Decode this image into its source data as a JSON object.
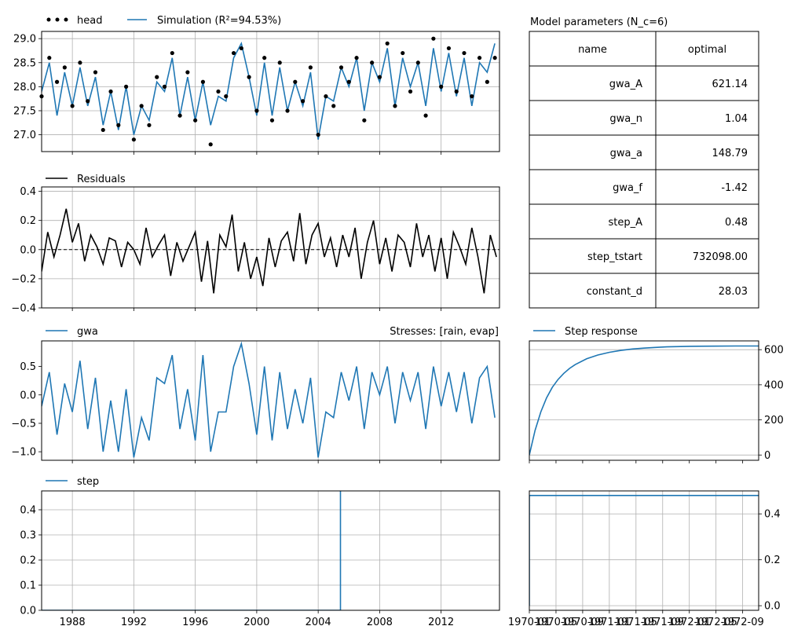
{
  "figure": {
    "colors": {
      "observed": "#000000",
      "simulated": "#1f77b4",
      "grid": "#b0b0b0",
      "frame": "#000000"
    },
    "x_ticks": [
      "1988",
      "1992",
      "1996",
      "2000",
      "2004",
      "2008",
      "2012"
    ],
    "table": {
      "title": "Model parameters (N_c=6)",
      "header": [
        "name",
        "optimal"
      ],
      "rows": [
        [
          "gwa_A",
          "621.14"
        ],
        [
          "gwa_n",
          "1.04"
        ],
        [
          "gwa_a",
          "148.79"
        ],
        [
          "gwa_f",
          "-1.42"
        ],
        [
          "step_A",
          "0.48"
        ],
        [
          "step_tstart",
          "732098.00"
        ],
        [
          "constant_d",
          "28.03"
        ]
      ]
    }
  },
  "chart_data": [
    {
      "type": "line",
      "panel": "fit",
      "xlim": [
        1986.0,
        2015.8
      ],
      "ylim": [
        26.65,
        29.15
      ],
      "yticks": [
        "27.0",
        "27.5",
        "28.0",
        "28.5",
        "29.0"
      ],
      "grid": true,
      "legend_position": "top-left",
      "series": [
        {
          "name": "head",
          "style": "dots",
          "color": "#000000",
          "x": [
            1986.0,
            1986.5,
            1987.0,
            1987.5,
            1988.0,
            1988.5,
            1989.0,
            1989.5,
            1990.0,
            1990.5,
            1991.0,
            1991.5,
            1992.0,
            1992.5,
            1993.0,
            1993.5,
            1994.0,
            1994.5,
            1995.0,
            1995.5,
            1996.0,
            1996.5,
            1997.0,
            1997.5,
            1998.0,
            1998.5,
            1999.0,
            1999.5,
            2000.0,
            2000.5,
            2001.0,
            2001.5,
            2002.0,
            2002.5,
            2003.0,
            2003.5,
            2004.0,
            2004.5,
            2005.0,
            2005.5,
            2006.0,
            2006.5,
            2007.0,
            2007.5,
            2008.0,
            2008.5,
            2009.0,
            2009.5,
            2010.0,
            2010.5,
            2011.0,
            2011.5,
            2012.0,
            2012.5,
            2013.0,
            2013.5,
            2014.0,
            2014.5,
            2015.0,
            2015.5
          ],
          "y": [
            27.8,
            28.6,
            28.1,
            28.4,
            27.6,
            28.5,
            27.7,
            28.3,
            27.1,
            27.9,
            27.2,
            28.0,
            26.9,
            27.6,
            27.2,
            28.2,
            28.0,
            28.7,
            27.4,
            28.3,
            27.3,
            28.1,
            26.8,
            27.9,
            27.8,
            28.7,
            28.8,
            28.2,
            27.5,
            28.6,
            27.3,
            28.5,
            27.5,
            28.1,
            27.7,
            28.4,
            27.0,
            27.8,
            27.6,
            28.4,
            28.1,
            28.6,
            27.3,
            28.5,
            28.2,
            28.9,
            27.6,
            28.7,
            27.9,
            28.5,
            27.4,
            29.0,
            28.0,
            28.8,
            27.9,
            28.7,
            27.8,
            28.6,
            28.1,
            28.6
          ]
        },
        {
          "name": "Simulation (R²=94.53%)",
          "style": "line",
          "color": "#1f77b4",
          "x": [
            1986.0,
            1986.5,
            1987.0,
            1987.5,
            1988.0,
            1988.5,
            1989.0,
            1989.5,
            1990.0,
            1990.5,
            1991.0,
            1991.5,
            1992.0,
            1992.5,
            1993.0,
            1993.5,
            1994.0,
            1994.5,
            1995.0,
            1995.5,
            1996.0,
            1996.5,
            1997.0,
            1997.5,
            1998.0,
            1998.5,
            1999.0,
            1999.5,
            2000.0,
            2000.5,
            2001.0,
            2001.5,
            2002.0,
            2002.5,
            2003.0,
            2003.5,
            2004.0,
            2004.5,
            2005.0,
            2005.5,
            2006.0,
            2006.5,
            2007.0,
            2007.5,
            2008.0,
            2008.5,
            2009.0,
            2009.5,
            2010.0,
            2010.5,
            2011.0,
            2011.5,
            2012.0,
            2012.5,
            2013.0,
            2013.5,
            2014.0,
            2014.5,
            2015.0,
            2015.5
          ],
          "y": [
            27.9,
            28.5,
            27.4,
            28.3,
            27.6,
            28.4,
            27.6,
            28.2,
            27.2,
            27.9,
            27.1,
            28.0,
            27.0,
            27.6,
            27.3,
            28.1,
            27.9,
            28.6,
            27.4,
            28.2,
            27.3,
            28.1,
            27.2,
            27.8,
            27.7,
            28.6,
            28.9,
            28.2,
            27.4,
            28.5,
            27.4,
            28.4,
            27.5,
            28.1,
            27.6,
            28.3,
            26.9,
            27.8,
            27.7,
            28.4,
            28.0,
            28.6,
            27.5,
            28.5,
            28.1,
            28.8,
            27.6,
            28.6,
            28.0,
            28.5,
            27.6,
            28.8,
            27.9,
            28.7,
            27.8,
            28.6,
            27.6,
            28.5,
            28.3,
            28.9
          ]
        }
      ]
    },
    {
      "type": "line",
      "panel": "residuals",
      "xlim": [
        1986.0,
        2015.8
      ],
      "ylim": [
        -0.4,
        0.43
      ],
      "yticks": [
        "−0.4",
        "−0.2",
        "0.0",
        "0.2",
        "0.4"
      ],
      "grid": true,
      "legend_position": "top-left",
      "series": [
        {
          "name": "Residuals",
          "color": "#000000",
          "x": [
            1986.0,
            1986.4,
            1986.8,
            1987.2,
            1987.6,
            1988.0,
            1988.4,
            1988.8,
            1989.2,
            1989.6,
            1990.0,
            1990.4,
            1990.8,
            1991.2,
            1991.6,
            1992.0,
            1992.4,
            1992.8,
            1993.2,
            1993.6,
            1994.0,
            1994.4,
            1994.8,
            1995.2,
            1995.6,
            1996.0,
            1996.4,
            1996.8,
            1997.2,
            1997.6,
            1998.0,
            1998.4,
            1998.8,
            1999.2,
            1999.6,
            2000.0,
            2000.4,
            2000.8,
            2001.2,
            2001.6,
            2002.0,
            2002.4,
            2002.8,
            2003.2,
            2003.6,
            2004.0,
            2004.4,
            2004.8,
            2005.2,
            2005.6,
            2006.0,
            2006.4,
            2006.8,
            2007.2,
            2007.6,
            2008.0,
            2008.4,
            2008.8,
            2009.2,
            2009.6,
            2010.0,
            2010.4,
            2010.8,
            2011.2,
            2011.6,
            2012.0,
            2012.4,
            2012.8,
            2013.2,
            2013.6,
            2014.0,
            2014.4,
            2014.8,
            2015.2,
            2015.6
          ],
          "y": [
            -0.15,
            0.12,
            -0.05,
            0.1,
            0.28,
            0.05,
            0.18,
            -0.08,
            0.1,
            0.02,
            -0.1,
            0.08,
            0.06,
            -0.12,
            0.05,
            0.0,
            -0.1,
            0.15,
            -0.05,
            0.03,
            0.1,
            -0.18,
            0.05,
            -0.08,
            0.02,
            0.12,
            -0.22,
            0.06,
            -0.3,
            0.1,
            0.02,
            0.24,
            -0.15,
            0.05,
            -0.2,
            -0.05,
            -0.25,
            0.08,
            -0.12,
            0.06,
            0.12,
            -0.08,
            0.25,
            -0.1,
            0.1,
            0.18,
            -0.05,
            0.08,
            -0.12,
            0.1,
            -0.05,
            0.15,
            -0.2,
            0.05,
            0.2,
            -0.1,
            0.08,
            -0.15,
            0.1,
            0.05,
            -0.12,
            0.18,
            -0.05,
            0.1,
            -0.15,
            0.08,
            -0.2,
            0.12,
            0.02,
            -0.1,
            0.15,
            -0.05,
            -0.3,
            0.1,
            -0.05
          ]
        }
      ]
    },
    {
      "type": "line",
      "panel": "contribution",
      "title": "Stresses: [rain, evap]",
      "xlim": [
        1986.0,
        2015.8
      ],
      "ylim": [
        -1.15,
        0.95
      ],
      "yticks": [
        "−1.0",
        "−0.5",
        "0.0",
        "0.5"
      ],
      "legend_position": "top-left",
      "series": [
        {
          "name": "gwa",
          "color": "#1f77b4",
          "x": [
            1986.0,
            1986.5,
            1987.0,
            1987.5,
            1988.0,
            1988.5,
            1989.0,
            1989.5,
            1990.0,
            1990.5,
            1991.0,
            1991.5,
            1992.0,
            1992.5,
            1993.0,
            1993.5,
            1994.0,
            1994.5,
            1995.0,
            1995.5,
            1996.0,
            1996.5,
            1997.0,
            1997.5,
            1998.0,
            1998.5,
            1999.0,
            1999.5,
            2000.0,
            2000.5,
            2001.0,
            2001.5,
            2002.0,
            2002.5,
            2003.0,
            2003.5,
            2004.0,
            2004.5,
            2005.0,
            2005.5,
            2006.0,
            2006.5,
            2007.0,
            2007.5,
            2008.0,
            2008.5,
            2009.0,
            2009.5,
            2010.0,
            2010.5,
            2011.0,
            2011.5,
            2012.0,
            2012.5,
            2013.0,
            2013.5,
            2014.0,
            2014.5,
            2015.0,
            2015.5
          ],
          "y": [
            -0.2,
            0.4,
            -0.7,
            0.2,
            -0.3,
            0.6,
            -0.6,
            0.3,
            -1.0,
            -0.1,
            -1.0,
            0.1,
            -1.1,
            -0.4,
            -0.8,
            0.3,
            0.2,
            0.7,
            -0.6,
            0.1,
            -0.8,
            0.7,
            -1.0,
            -0.3,
            -0.3,
            0.5,
            0.9,
            0.2,
            -0.7,
            0.5,
            -0.8,
            0.4,
            -0.6,
            0.1,
            -0.5,
            0.3,
            -1.1,
            -0.3,
            -0.4,
            0.4,
            -0.1,
            0.5,
            -0.6,
            0.4,
            0.0,
            0.5,
            -0.5,
            0.4,
            -0.1,
            0.4,
            -0.6,
            0.5,
            -0.2,
            0.4,
            -0.3,
            0.4,
            -0.5,
            0.3,
            0.5,
            -0.4
          ]
        }
      ]
    },
    {
      "type": "line",
      "panel": "step-response",
      "xlim": [
        0,
        1000
      ],
      "ylim": [
        -30,
        650
      ],
      "yticks": [
        "0",
        "200",
        "400",
        "600"
      ],
      "grid": true,
      "legend_position": "top-left",
      "series": [
        {
          "name": "Step response",
          "color": "#1f77b4",
          "x": [
            0,
            25,
            50,
            75,
            100,
            125,
            150,
            175,
            200,
            250,
            300,
            350,
            400,
            450,
            500,
            550,
            600,
            700,
            800,
            900,
            1000
          ],
          "y": [
            0,
            140,
            245,
            325,
            385,
            430,
            465,
            493,
            515,
            548,
            570,
            585,
            596,
            604,
            609,
            613,
            616,
            619,
            620,
            621,
            621
          ]
        }
      ]
    },
    {
      "type": "line",
      "panel": "step",
      "xlim": [
        1986.0,
        2015.8
      ],
      "ylim": [
        0,
        0.475
      ],
      "yticks": [
        "0.0",
        "0.1",
        "0.2",
        "0.3",
        "0.4"
      ],
      "grid": true,
      "legend_position": "top-left",
      "series": [
        {
          "name": "step",
          "color": "#1f77b4",
          "x": [
            1986.0,
            2005.45,
            2005.45,
            2015.8
          ],
          "y": [
            0,
            0,
            0.48,
            0.48
          ]
        }
      ]
    },
    {
      "type": "line",
      "panel": "step-block-response",
      "xlim": [
        0,
        1000
      ],
      "ylim": [
        -0.02,
        0.5
      ],
      "yticks": [
        "0.0",
        "0.2",
        "0.4"
      ],
      "x_tick_labels": [
        "1970-01",
        "1970-05",
        "1970-09",
        "1971-01",
        "1971-05",
        "1971-09",
        "1972-01",
        "1972-05",
        "1972-09"
      ],
      "grid": true,
      "series": [
        {
          "name": "",
          "color": "#1f77b4",
          "x": [
            0,
            0,
            1000
          ],
          "y": [
            0,
            0.48,
            0.48
          ]
        }
      ]
    }
  ]
}
